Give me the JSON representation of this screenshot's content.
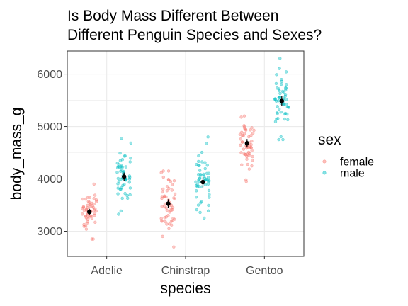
{
  "chart_data": {
    "type": "scatter",
    "title_lines": [
      "Is Body Mass Different Between",
      "Different Penguin Species and Sexes?"
    ],
    "xlabel": "species",
    "ylabel": "body_mass_g",
    "categories": [
      "Adelie",
      "Chinstrap",
      "Gentoo"
    ],
    "ylim": [
      2520,
      6440
    ],
    "yticks": [
      3000,
      4000,
      5000,
      6000
    ],
    "grid": true,
    "legend": {
      "title": "sex",
      "placement": "right",
      "entries": [
        {
          "name": "female",
          "color": "#F8766D"
        },
        {
          "name": "male",
          "color": "#00BFC4"
        }
      ]
    },
    "groups": [
      {
        "species": "Adelie",
        "sex": "female",
        "mean": 3369,
        "ci": [
          3310,
          3430
        ],
        "min": 2850,
        "max": 3900
      },
      {
        "species": "Adelie",
        "sex": "male",
        "mean": 4043,
        "ci": [
          3960,
          4120
        ],
        "min": 3325,
        "max": 4775
      },
      {
        "species": "Chinstrap",
        "sex": "female",
        "mean": 3527,
        "ci": [
          3440,
          3610
        ],
        "min": 2700,
        "max": 4150
      },
      {
        "species": "Chinstrap",
        "sex": "male",
        "mean": 3939,
        "ci": [
          3840,
          4030
        ],
        "min": 3250,
        "max": 4800
      },
      {
        "species": "Gentoo",
        "sex": "female",
        "mean": 4680,
        "ci": [
          4600,
          4760
        ],
        "min": 3950,
        "max": 5200
      },
      {
        "species": "Gentoo",
        "sex": "male",
        "mean": 5485,
        "ci": [
          5390,
          5580
        ],
        "min": 4750,
        "max": 6300
      }
    ]
  }
}
